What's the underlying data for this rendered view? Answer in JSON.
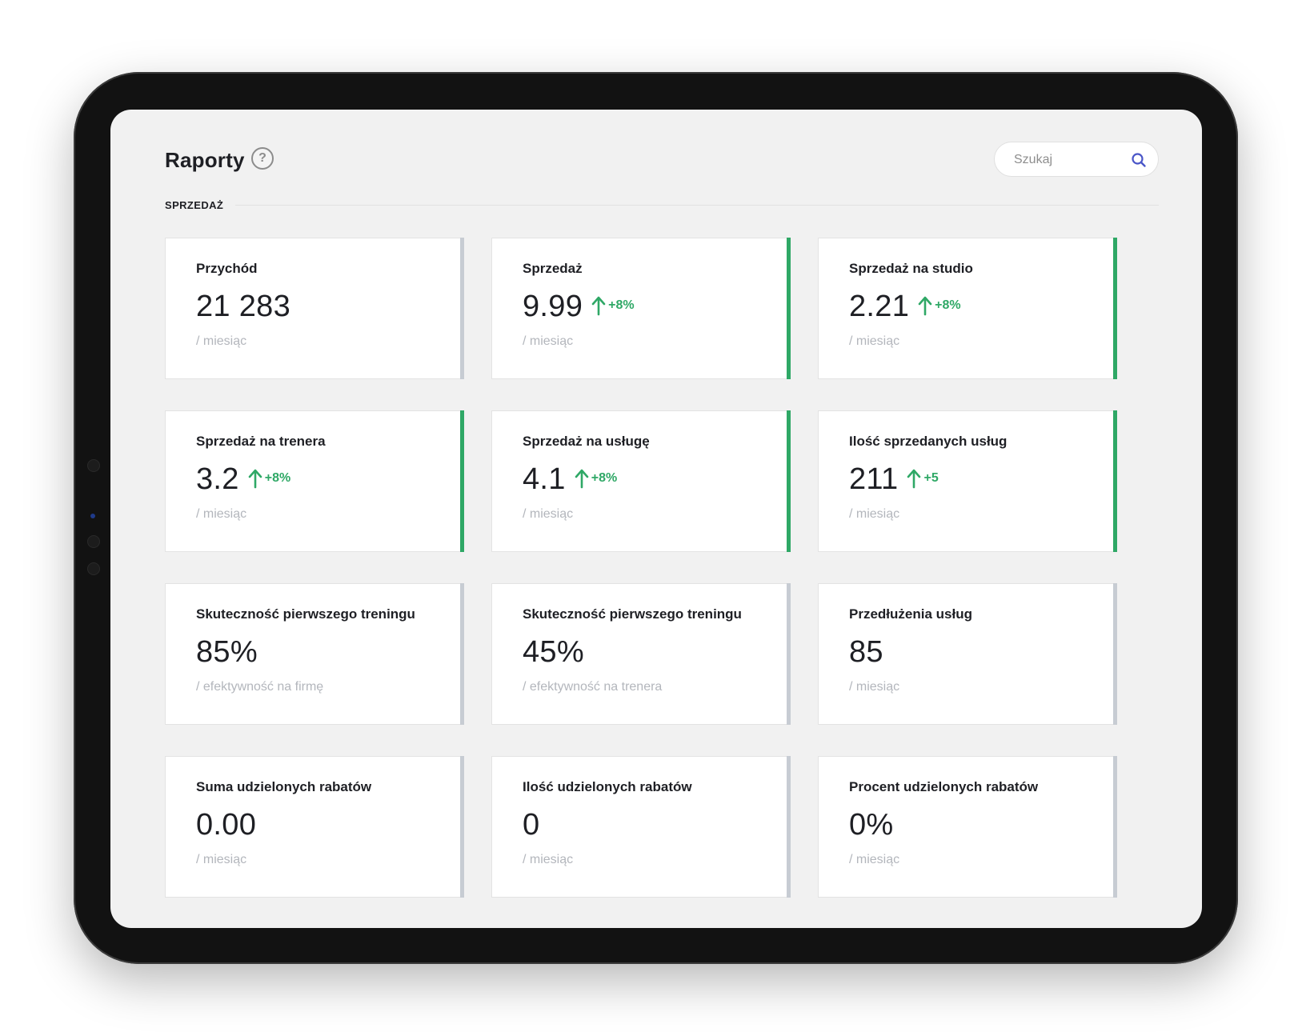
{
  "header": {
    "title": "Raporty",
    "help_icon": "?"
  },
  "search": {
    "placeholder": "Szukaj",
    "icon": "search-icon"
  },
  "section": {
    "label": "SPRZEDAŻ"
  },
  "colors": {
    "accent_green": "#2fa866",
    "neutral_bar": "#c7ccd3",
    "search_icon": "#4a56c8"
  },
  "cards": [
    {
      "title": "Przychód",
      "value": "21 283",
      "trend": "",
      "subtitle": "/ miesiąc"
    },
    {
      "title": "Sprzedaż",
      "value": "9.99",
      "trend": "+8%",
      "subtitle": "/ miesiąc"
    },
    {
      "title": "Sprzedaż na studio",
      "value": "2.21",
      "trend": "+8%",
      "subtitle": "/ miesiąc"
    },
    {
      "title": "Sprzedaż na trenera",
      "value": "3.2",
      "trend": "+8%",
      "subtitle": "/ miesiąc"
    },
    {
      "title": "Sprzedaż na usługę",
      "value": "4.1",
      "trend": "+8%",
      "subtitle": "/ miesiąc"
    },
    {
      "title": "Ilość sprzedanych usług",
      "value": "211",
      "trend": "+5",
      "subtitle": "/ miesiąc"
    },
    {
      "title": "Skuteczność pierwszego treningu",
      "value": "85%",
      "trend": "",
      "subtitle": "/ efektywność na firmę"
    },
    {
      "title": "Skuteczność pierwszego treningu",
      "value": "45%",
      "trend": "",
      "subtitle": "/ efektywność na trenera"
    },
    {
      "title": "Przedłużenia usług",
      "value": "85",
      "trend": "",
      "subtitle": "/ miesiąc"
    },
    {
      "title": "Suma udzielonych rabatów",
      "value": "0.00",
      "trend": "",
      "subtitle": "/ miesiąc"
    },
    {
      "title": "Ilość udzielonych rabatów",
      "value": "0",
      "trend": "",
      "subtitle": "/ miesiąc"
    },
    {
      "title": "Procent udzielonych rabatów",
      "value": "0%",
      "trend": "",
      "subtitle": "/ miesiąc"
    }
  ]
}
